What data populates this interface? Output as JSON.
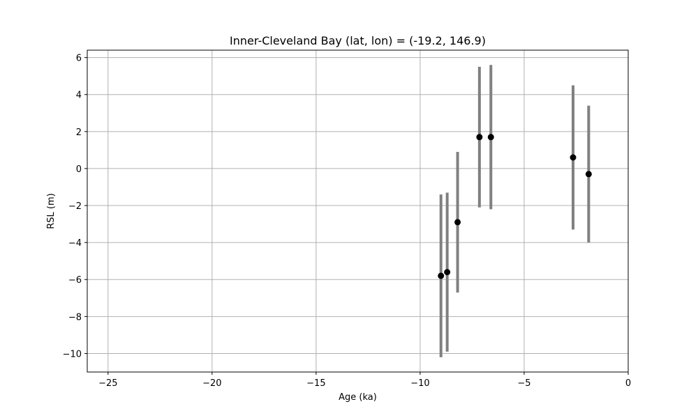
{
  "chart_data": {
    "type": "scatter",
    "title": "Inner-Cleveland Bay (lat, lon) = (-19.2, 146.9)",
    "xlabel": "Age (ka)",
    "ylabel": "RSL (m)",
    "xlim": [
      -26,
      0
    ],
    "ylim": [
      -11,
      6.4
    ],
    "xticks": [
      -25,
      -20,
      -15,
      -10,
      -5,
      0
    ],
    "yticks": [
      -10,
      -8,
      -6,
      -4,
      -2,
      0,
      2,
      4,
      6
    ],
    "grid": true,
    "points": [
      {
        "x": -9.0,
        "y": -5.8,
        "ylow": -10.2,
        "yhigh": -1.4
      },
      {
        "x": -8.7,
        "y": -5.6,
        "ylow": -9.9,
        "yhigh": -1.3
      },
      {
        "x": -8.2,
        "y": -2.9,
        "ylow": -6.7,
        "yhigh": 0.9
      },
      {
        "x": -7.15,
        "y": 1.7,
        "ylow": -2.1,
        "yhigh": 5.5
      },
      {
        "x": -6.6,
        "y": 1.7,
        "ylow": -2.2,
        "yhigh": 5.6
      },
      {
        "x": -2.65,
        "y": 0.6,
        "ylow": -3.3,
        "yhigh": 4.5
      },
      {
        "x": -1.9,
        "y": -0.3,
        "ylow": -4.0,
        "yhigh": 3.4
      }
    ],
    "colors": {
      "marker": "#000000",
      "errorbar": "#808080",
      "grid": "#b0b0b0",
      "axes": "#000000"
    }
  }
}
